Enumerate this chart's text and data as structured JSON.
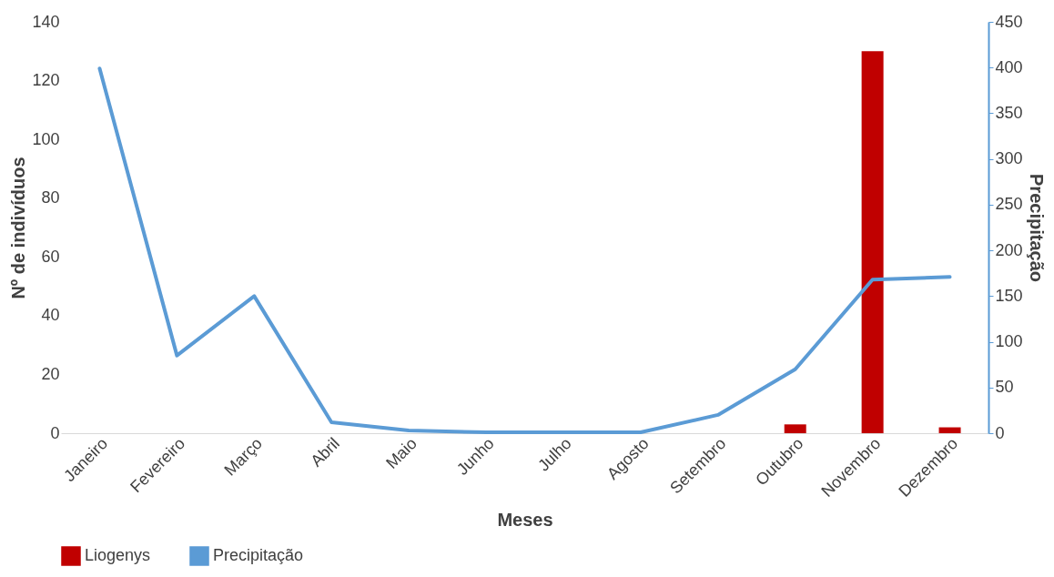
{
  "chart_data": {
    "type": "bar",
    "xlabel": "Meses",
    "ylabel": "Nº de indivíduos",
    "y2label": "Precipitação",
    "categories": [
      "Janeiro",
      "Fevereiro",
      "Março",
      "Abril",
      "Maio",
      "Junho",
      "Julho",
      "Agosto",
      "Setembro",
      "Outubro",
      "Novembro",
      "Dezembro"
    ],
    "series": [
      {
        "name": "Liogenys",
        "color": "#c00000",
        "values": [
          0,
          0,
          0,
          0,
          0,
          0,
          0,
          0,
          0,
          3,
          130,
          2
        ]
      },
      {
        "name": "Precipitação",
        "type": "line",
        "axis": "y2",
        "color": "#5b9bd5",
        "values": [
          399,
          85,
          150,
          12,
          3,
          1,
          1,
          1,
          20,
          70,
          168,
          171
        ]
      }
    ],
    "ylim": [
      0,
      140
    ],
    "yticks": [
      0,
      20,
      40,
      60,
      80,
      100,
      120,
      140
    ],
    "y2lim": [
      0,
      450
    ],
    "y2ticks": [
      0,
      50,
      100,
      150,
      200,
      250,
      300,
      350,
      400,
      450
    ],
    "grid": false,
    "legend": "bottom"
  }
}
